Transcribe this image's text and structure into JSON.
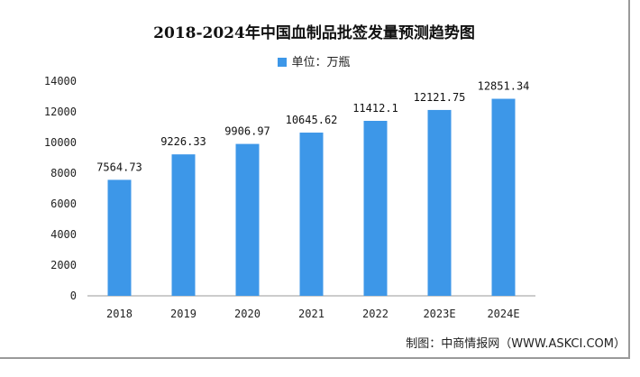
{
  "chart_data": {
    "type": "bar",
    "title": "2018-2024年中国血制品批签发量预测趋势图",
    "legend": "单位：万瓶",
    "legend_position": "top-center",
    "categories": [
      "2018",
      "2019",
      "2020",
      "2021",
      "2022",
      "2023E",
      "2024E"
    ],
    "values": [
      7564.73,
      9226.33,
      9906.97,
      10645.62,
      11412.1,
      12121.75,
      12851.34
    ],
    "value_labels": [
      "7564.73",
      "9226.33",
      "9906.97",
      "10645.62",
      "11412.1",
      "12121.75",
      "12851.34"
    ],
    "yticks": [
      "0",
      "2000",
      "4000",
      "6000",
      "8000",
      "10000",
      "12000",
      "14000"
    ],
    "ylim": [
      0,
      14000
    ],
    "grid": false,
    "bar_color": "#3d97e8",
    "source": "制图：中商情报网（WWW.ASKCI.COM）"
  }
}
